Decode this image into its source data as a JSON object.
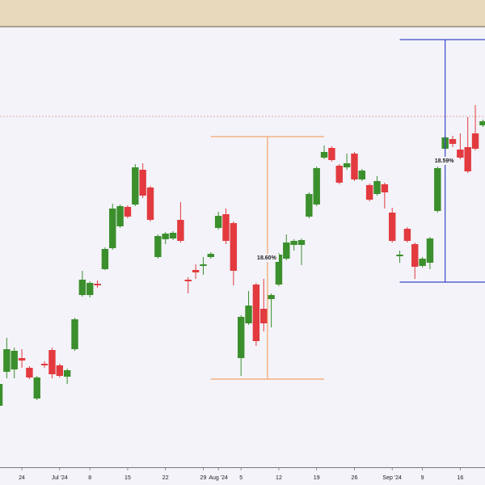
{
  "chart_data": {
    "type": "candlestick",
    "categories": [
      null,
      null,
      null,
      "24",
      null,
      null,
      null,
      null,
      "Jul '24",
      null,
      null,
      null,
      "8",
      null,
      null,
      null,
      null,
      "15",
      null,
      null,
      null,
      null,
      "22",
      null,
      null,
      null,
      null,
      "29",
      null,
      "Aug '24",
      null,
      null,
      "5",
      null,
      null,
      null,
      null,
      "12",
      null,
      null,
      null,
      null,
      "19",
      null,
      null,
      null,
      null,
      "26",
      null,
      null,
      null,
      null,
      "Sep '24",
      null,
      null,
      null,
      "9",
      null,
      null,
      null,
      null,
      "16",
      null,
      null,
      null
    ],
    "open": [
      98,
      140,
      143,
      157,
      145,
      107,
      150,
      167,
      148,
      134,
      168,
      235,
      235,
      249,
      267,
      293,
      320,
      344,
      347,
      390,
      368,
      282,
      304,
      305,
      328,
      254,
      266,
      271,
      282,
      318,
      335,
      324,
      157,
      200,
      248,
      218,
      230,
      248,
      280,
      297,
      297,
      332,
      347,
      405,
      417,
      395,
      393,
      410,
      378,
      371,
      360,
      372,
      337,
      283,
      317,
      298,
      271,
      275,
      339,
      416,
      428,
      415,
      418,
      435,
      445
    ],
    "high": [
      130,
      182,
      170,
      168,
      147,
      135,
      153,
      170,
      150,
      144,
      207,
      265,
      252,
      253,
      294,
      348,
      347,
      346,
      397,
      398,
      370,
      310,
      313,
      314,
      350,
      257,
      273,
      282,
      288,
      338,
      342,
      326,
      210,
      240,
      250,
      255,
      237,
      287,
      310,
      304,
      305,
      362,
      394,
      420,
      419,
      397,
      410,
      412,
      391,
      373,
      382,
      374,
      343,
      290,
      319,
      300,
      282,
      307,
      394,
      432,
      432,
      435,
      455,
      470,
      452
    ],
    "low": [
      95,
      132,
      132,
      145,
      131,
      105,
      145,
      132,
      133,
      125,
      166,
      233,
      232,
      244,
      266,
      291,
      318,
      330,
      345,
      355,
      326,
      280,
      298,
      303,
      300,
      237,
      255,
      260,
      280,
      316,
      298,
      247,
      135,
      198,
      172,
      190,
      195,
      246,
      278,
      290,
      272,
      330,
      345,
      403,
      400,
      372,
      390,
      376,
      376,
      351,
      358,
      342,
      300,
      275,
      300,
      255,
      269,
      267,
      337,
      414,
      418,
      403,
      386,
      414,
      443
    ],
    "close": [
      125,
      168,
      166,
      154,
      133,
      133,
      148,
      137,
      135,
      142,
      205,
      254,
      250,
      247,
      292,
      342,
      345,
      332,
      393,
      358,
      328,
      308,
      311,
      312,
      302,
      252,
      263,
      273,
      286,
      333,
      302,
      265,
      208,
      222,
      178,
      200,
      235,
      285,
      300,
      302,
      303,
      360,
      392,
      412,
      402,
      374,
      398,
      378,
      389,
      353,
      376,
      362,
      302,
      285,
      302,
      270,
      280,
      305,
      392,
      430,
      422,
      405,
      388,
      416,
      450
    ],
    "up_color": "#3b8f2c",
    "down_color": "#e23a3f",
    "ylim": [
      22,
      565
    ],
    "price_line": 456,
    "measures": [
      {
        "from": 28,
        "to": 43,
        "high": 431,
        "low": 131,
        "label": "18.60%",
        "color": "#f4a36a"
      },
      {
        "from": 53,
        "to": 65,
        "high": 551,
        "low": 251,
        "label": "18.59%",
        "color": "#3a47c8"
      }
    ]
  }
}
